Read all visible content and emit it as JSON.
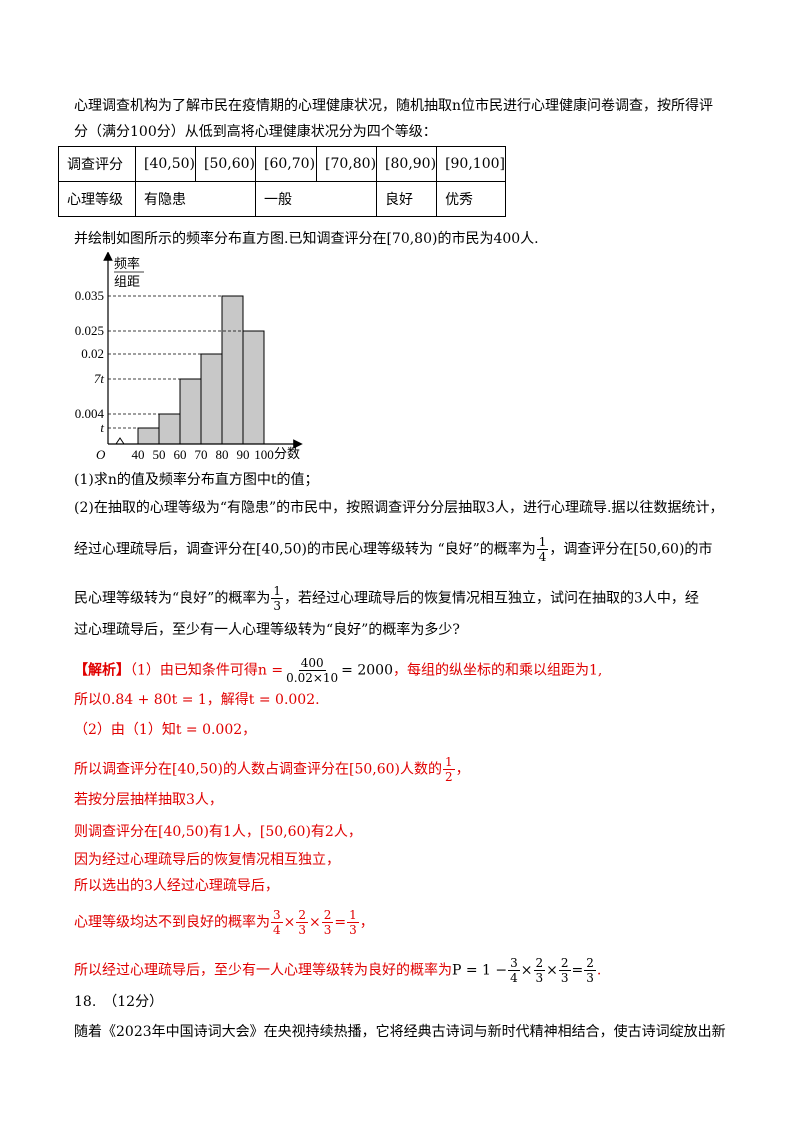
{
  "intro": {
    "line1": "心理调查机构为了解市民在疫情期的心理健康状况，随机抽取n位市民进行心理健康问卷调查，按所得评",
    "line2": "分（满分100分）从低到高将心理健康状况分为四个等级："
  },
  "table": {
    "row1_label": "调查评分",
    "intervals": [
      "[40,50)",
      "[50,60)",
      "[60,70)",
      "[70,80)",
      "[80,90)",
      "[90,100]"
    ],
    "row2_label": "心理等级",
    "levels": [
      "有隐患",
      "一般",
      "良好",
      "优秀"
    ]
  },
  "after_table": "并绘制如图所示的频率分布直方图.已知调查评分在[70,80)的市民为400人.",
  "chart_data": {
    "type": "bar",
    "ylabel_top": "频率",
    "ylabel_bottom": "组距",
    "xlabel": "分数",
    "origin": "O",
    "x_ticks": [
      "40",
      "50",
      "60",
      "70",
      "80",
      "90",
      "100"
    ],
    "y_ticks": [
      "0.035",
      "0.025",
      "0.02",
      "7t",
      "0.004",
      "t"
    ],
    "bins": [
      [
        40,
        50
      ],
      [
        50,
        60
      ],
      [
        60,
        70
      ],
      [
        70,
        80
      ],
      [
        80,
        90
      ],
      [
        90,
        100
      ]
    ],
    "values": [
      0.002,
      0.004,
      0.014,
      0.02,
      0.035,
      0.025
    ],
    "ylim": [
      0,
      0.04
    ]
  },
  "questions": {
    "q1": "(1)求n的值及频率分布直方图中t的值；",
    "q2_l1": "(2)在抽取的心理等级为“有隐患”的市民中，按照调查评分分层抽取3人，进行心理疏导.据以往数据统计，",
    "q2_l2a": "经过心理疏导后，调查评分在[40,50)的市民心理等级转为 “良好”的概率为",
    "q2_l2b": "，调查评分在[50,60)的市",
    "q2_l3a": "民心理等级转为“良好”的概率为",
    "q2_l3b": "，若经过心理疏导后的恢复情况相互独立，试问在抽取的3人中，经",
    "q2_l4": "过心理疏导后，至少有一人心理等级转为“良好”的概率为多少?"
  },
  "solution": {
    "tag": "【解析】",
    "s1a": "（1）由已知条件可得",
    "s1_eq_lhs": "n =",
    "s1_eq_num": "400",
    "s1_eq_den": "0.02×10",
    "s1_eq_rhs": "= 2000",
    "s1b": "，每组的纵坐标的和乘以组距为1,",
    "s2": "所以0.84 + 80t = 1，解得t = 0.002.",
    "s3": "（2）由（1）知t = 0.002，",
    "s4a": "所以调查评分在[40,50)的人数占调查评分在[50,60)人数的",
    "s4b": "，",
    "s5": "若按分层抽样抽取3人，",
    "s6": "则调查评分在[40,50)有1人，[50,60)有2人，",
    "s7": "因为经过心理疏导后的恢复情况相互独立，",
    "s8": "所以选出的3人经过心理疏导后，",
    "s9a": "心理等级均达不到良好的概率为",
    "s9b": "，",
    "s10a": "所以经过心理疏导后，至少有一人心理等级转为良好的概率为",
    "s10_p": "P = 1 −",
    "s10b": "."
  },
  "fractions": {
    "quarter": [
      "1",
      "4"
    ],
    "third": [
      "1",
      "3"
    ],
    "half": [
      "1",
      "2"
    ],
    "three_quarters": [
      "3",
      "4"
    ],
    "two_thirds": [
      "2",
      "3"
    ]
  },
  "next_problem": {
    "number": "18.　（12分）",
    "text": "随着《2023年中国诗词大会》在央视持续热播，它将经典古诗词与新时代精神相结合，使古诗词绽放出新"
  }
}
